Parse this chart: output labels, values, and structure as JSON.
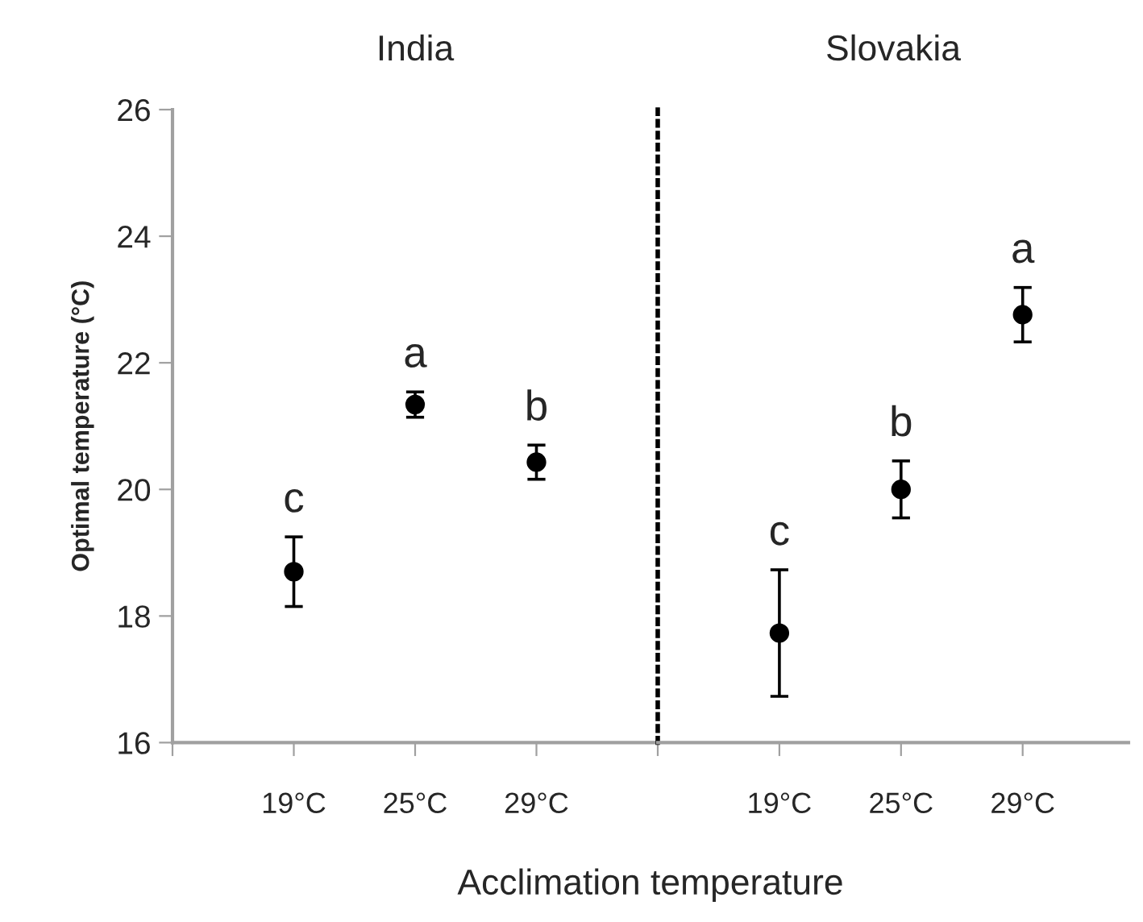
{
  "chart_data": [
    {
      "type": "scatter",
      "title": "India",
      "ylabel": "Optimal temperature (°C)",
      "categories": [
        null,
        "19°C",
        "25°C",
        "29°C"
      ],
      "values": [
        null,
        18.7,
        21.34,
        20.43
      ],
      "errors": [
        null,
        0.55,
        0.2,
        0.27
      ],
      "color": "#000000",
      "marker": "circle",
      "ylim": [
        16,
        26
      ],
      "yticks": [
        16,
        18,
        20,
        22,
        24,
        26
      ],
      "grid": false,
      "annotations": [
        "c",
        "a",
        "b"
      ]
    },
    {
      "type": "scatter",
      "title": "Slovakia",
      "xlabel": "Acclimation temperature",
      "categories": [
        null,
        "19°C",
        "25°C",
        "29°C"
      ],
      "values": [
        null,
        17.73,
        20.0,
        22.76
      ],
      "errors": [
        null,
        1.0,
        0.45,
        0.43
      ],
      "color": "#000000",
      "marker": "circle",
      "ylim": [
        16,
        26
      ],
      "yticks": [
        16,
        18,
        20,
        22,
        24,
        26
      ],
      "grid": false,
      "tick_labels": "x",
      "annotations": [
        "c",
        "b",
        "a"
      ]
    }
  ]
}
